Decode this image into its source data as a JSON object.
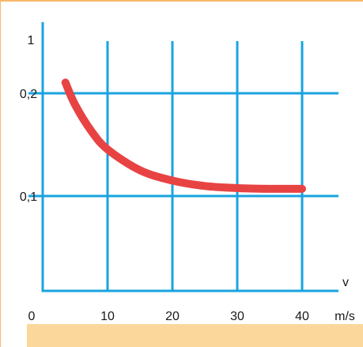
{
  "chart_data": {
    "type": "line",
    "title": "",
    "xlabel": "v",
    "x_unit": "m/s",
    "ylabel": "",
    "xlim": [
      0,
      40
    ],
    "ylim": [
      0,
      1
    ],
    "x_ticks": [
      {
        "value": 0,
        "label": "0"
      },
      {
        "value": 10,
        "label": "10"
      },
      {
        "value": 20,
        "label": "20"
      },
      {
        "value": 30,
        "label": "30"
      },
      {
        "value": 40,
        "label": "40"
      }
    ],
    "y_ticks": [
      {
        "value": 0.1,
        "label": "0,1"
      },
      {
        "value": 0.2,
        "label": "0,2"
      },
      {
        "value": 1,
        "label": "1"
      }
    ],
    "y_scale": "log",
    "grid": true,
    "series": [
      {
        "color": "#e84343",
        "points": [
          {
            "x": 3.5,
            "y": 0.215
          },
          {
            "x": 5,
            "y": 0.185
          },
          {
            "x": 7.5,
            "y": 0.155
          },
          {
            "x": 10,
            "y": 0.137
          },
          {
            "x": 15,
            "y": 0.119
          },
          {
            "x": 20,
            "y": 0.111
          },
          {
            "x": 25,
            "y": 0.107
          },
          {
            "x": 30,
            "y": 0.1055
          },
          {
            "x": 35,
            "y": 0.105
          },
          {
            "x": 40,
            "y": 0.105
          }
        ]
      }
    ],
    "colors": {
      "grid": "#1aa3e0",
      "axis": "#1aa3e0",
      "frame": "#f7b96a",
      "bottom_band": "#fbd79c"
    }
  }
}
